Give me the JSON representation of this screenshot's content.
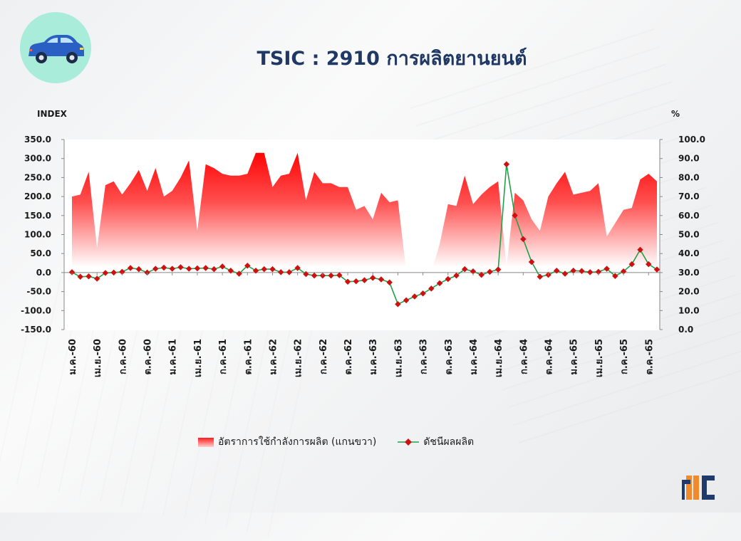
{
  "title": "TSIC : 2910 การผลิตยานยนต์",
  "icons": {
    "car": "car-icon",
    "org_logo": "oie-logo"
  },
  "chart_data": {
    "type": "line+area",
    "left_axis_label": "INDEX",
    "right_axis_label": "%",
    "left_ylim": [
      -150,
      350
    ],
    "right_ylim": [
      0,
      100
    ],
    "left_ticks": [
      "350.0",
      "300.0",
      "250.0",
      "200.0",
      "150.0",
      "100.0",
      "50.0",
      "0.0",
      "-50.0",
      "-100.0",
      "-150.0"
    ],
    "right_ticks": [
      "100.0",
      "90.0",
      "80.0",
      "70.0",
      "60.0",
      "50.0",
      "40.0",
      "30.0",
      "20.0",
      "10.0",
      "0.0"
    ],
    "x_tick_labels": [
      "ม.ค.-60",
      "เม.ย.-60",
      "ก.ค.-60",
      "ต.ค.-60",
      "ม.ค.-61",
      "เม.ย.-61",
      "ก.ค.-61",
      "ต.ค.-61",
      "ม.ค.-62",
      "เม.ย.-62",
      "ก.ค.-62",
      "ต.ค.-62",
      "ม.ค.-63",
      "เม.ย.-63",
      "ก.ค.-63",
      "ต.ค.-63",
      "ม.ค.-64",
      "เม.ย.-64",
      "ก.ค.-64",
      "ต.ค.-64",
      "ม.ค.-65",
      "เม.ย.-65",
      "ก.ค.-65",
      "ต.ค.-65"
    ],
    "series": [
      {
        "name": "อัตราการใช้กำลังการผลิต (แกนขวา)",
        "axis": "right",
        "type": "area",
        "color": "#ff0000",
        "values": [
          70,
          71,
          83,
          43,
          76,
          78,
          71,
          77,
          84,
          73,
          85,
          70,
          73,
          80,
          89,
          52,
          87,
          85,
          82,
          81,
          81,
          82,
          93,
          93,
          75,
          81,
          82,
          93,
          68,
          83,
          77,
          77,
          75,
          75,
          63,
          65,
          58,
          72,
          67,
          68,
          31,
          4,
          2,
          30,
          45,
          66,
          65,
          81,
          66,
          71,
          75,
          78,
          33,
          72,
          68,
          58,
          52,
          70,
          77,
          83,
          71,
          72,
          73,
          77,
          49,
          56,
          63,
          64,
          79,
          82,
          78
        ]
      },
      {
        "name": "ดัชนีผลผลิต",
        "axis": "left",
        "type": "line",
        "color": "#22a04a",
        "marker_color": "#d01010",
        "values": [
          1,
          -11,
          -10,
          -16,
          -1,
          0,
          2,
          12,
          9,
          0,
          10,
          13,
          10,
          14,
          10,
          11,
          12,
          9,
          16,
          5,
          -3,
          18,
          5,
          9,
          9,
          1,
          1,
          12,
          -4,
          -8,
          -8,
          -8,
          -7,
          -24,
          -23,
          -20,
          -14,
          -18,
          -26,
          -83,
          -73,
          -63,
          -55,
          -42,
          -28,
          -17,
          -8,
          9,
          3,
          -6,
          2,
          8,
          285,
          150,
          88,
          28,
          -11,
          -6,
          5,
          -3,
          5,
          4,
          1,
          2,
          10,
          -9,
          3,
          22,
          60,
          22,
          8
        ]
      }
    ],
    "legend_position": "bottom-center"
  },
  "source_logo_text": "OFFICE OF INDUSTRIAL ECONOMICS"
}
